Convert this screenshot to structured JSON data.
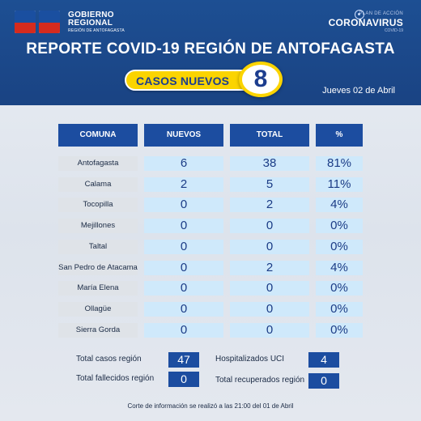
{
  "branding": {
    "logo_text_1": "GOBIERNO",
    "logo_text_2": "REGIONAL",
    "logo_text_3": "REGIÓN DE ANTOFAGASTA",
    "plan_text": "PLAN DE ACCIÓN",
    "campaign": "CORONAVIRUS",
    "campaign_sub": "COVID-19"
  },
  "title": "REPORTE COVID-19 REGIÓN DE ANTOFAGASTA",
  "new_cases_label": "CASOS NUEVOS",
  "new_cases_count": "8",
  "date": "Jueves 02 de Abril",
  "table": {
    "headers": [
      "COMUNA",
      "NUEVOS",
      "TOTAL",
      "%"
    ],
    "rows": [
      {
        "comuna": "Antofagasta",
        "nuevos": "6",
        "total": "38",
        "pct": "81%"
      },
      {
        "comuna": "Calama",
        "nuevos": "2",
        "total": "5",
        "pct": "11%"
      },
      {
        "comuna": "Tocopilla",
        "nuevos": "0",
        "total": "2",
        "pct": "4%"
      },
      {
        "comuna": "Mejillones",
        "nuevos": "0",
        "total": "0",
        "pct": "0%"
      },
      {
        "comuna": "Taltal",
        "nuevos": "0",
        "total": "0",
        "pct": "0%"
      },
      {
        "comuna": "San Pedro de Atacama",
        "nuevos": "0",
        "total": "2",
        "pct": "4%"
      },
      {
        "comuna": "María Elena",
        "nuevos": "0",
        "total": "0",
        "pct": "0%"
      },
      {
        "comuna": "Ollagüe",
        "nuevos": "0",
        "total": "0",
        "pct": "0%"
      },
      {
        "comuna": "Sierra Gorda",
        "nuevos": "0",
        "total": "0",
        "pct": "0%"
      }
    ]
  },
  "totals": {
    "casos_label": "Total casos región",
    "casos_value": "47",
    "fallecidos_label": "Total fallecidos región",
    "fallecidos_value": "0",
    "uci_label": "Hospitalizados UCI",
    "uci_value": "4",
    "recuperados_label": "Total recuperados región",
    "recuperados_value": "0"
  },
  "footnote": "Corte de información se realizó a las 21:00 del 01 de Abril",
  "colors": {
    "header_bg": "#1d4f93",
    "accent_yellow": "#fbd400",
    "table_header": "#1c4da0",
    "cell_light_blue": "#cfe9fb",
    "cell_gray": "#dfe3e8"
  }
}
